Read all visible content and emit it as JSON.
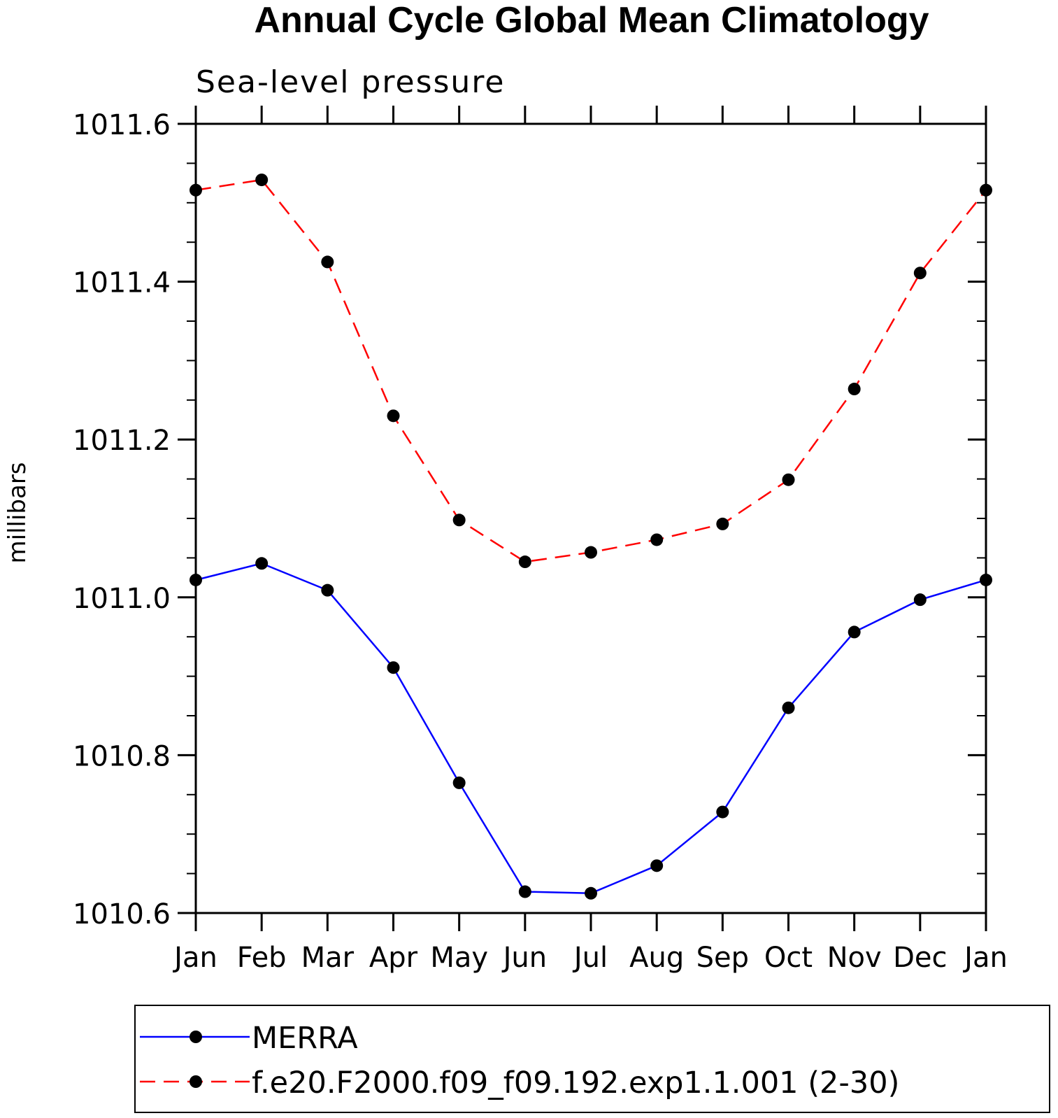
{
  "chart_data": {
    "type": "line",
    "title": "Annual Cycle Global Mean Climatology",
    "subtitle": "Sea-level pressure",
    "xlabel": "",
    "ylabel": "millibars",
    "categories": [
      "Jan",
      "Feb",
      "Mar",
      "Apr",
      "May",
      "Jun",
      "Jul",
      "Aug",
      "Sep",
      "Oct",
      "Nov",
      "Dec",
      "Jan"
    ],
    "ylim": [
      1010.6,
      1011.6
    ],
    "yticks": [
      "1010.6",
      "1010.8",
      "1011.0",
      "1011.2",
      "1011.4",
      "1011.6"
    ],
    "grid": false,
    "legend_position": "bottom",
    "series": [
      {
        "name": "MERRA",
        "color": "#0000ff",
        "style": "solid",
        "marker": "filled-circle",
        "values": [
          1011.022,
          1011.043,
          1011.009,
          1010.911,
          1010.765,
          1010.627,
          1010.625,
          1010.66,
          1010.728,
          1010.86,
          1010.956,
          1010.997,
          1011.022
        ]
      },
      {
        "name": "f.e20.F2000.f09_f09.192.exp1.1.001 (2-30)",
        "color": "#ff0000",
        "style": "dashed",
        "marker": "filled-circle",
        "values": [
          1011.516,
          1011.529,
          1011.425,
          1011.23,
          1011.098,
          1011.045,
          1011.057,
          1011.073,
          1011.093,
          1011.149,
          1011.264,
          1011.411,
          1011.516
        ]
      }
    ]
  }
}
